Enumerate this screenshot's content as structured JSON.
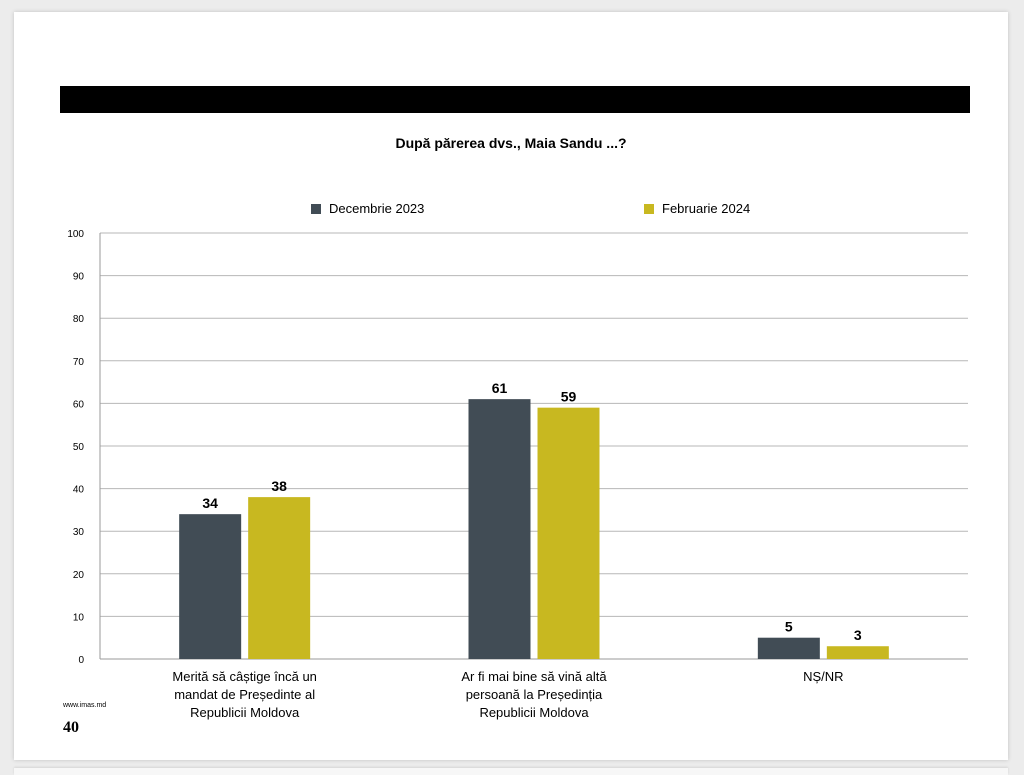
{
  "page": {
    "footer_url": "www.imas.md",
    "page_number": "40"
  },
  "colors": {
    "series_1": "#414c55",
    "series_2": "#c8b820",
    "gridline": "#b7b7b7"
  },
  "chart_data": {
    "type": "bar",
    "title": "După părerea dvs., Maia Sandu ...?",
    "xlabel": "",
    "ylabel": "",
    "ylim": [
      0,
      100
    ],
    "yticks": [
      0,
      10,
      20,
      30,
      40,
      50,
      60,
      70,
      80,
      90,
      100
    ],
    "grid": true,
    "legend_position": "top",
    "categories": [
      "Merită să câștige încă un mandat de Președinte al Republicii Moldova",
      "Ar fi mai bine să vină altă persoană la Președinția Republicii Moldova",
      "NȘ/NR"
    ],
    "category_lines": [
      [
        "Merită să câștige încă un",
        "mandat de Președinte al",
        "Republicii Moldova"
      ],
      [
        "Ar fi mai bine să vină altă",
        "persoană la Președinția",
        "Republicii Moldova"
      ],
      [
        "NȘ/NR"
      ]
    ],
    "series": [
      {
        "name": "Decembrie 2023",
        "values": [
          34,
          61,
          5
        ]
      },
      {
        "name": "Februarie 2024",
        "values": [
          38,
          59,
          3
        ]
      }
    ]
  }
}
